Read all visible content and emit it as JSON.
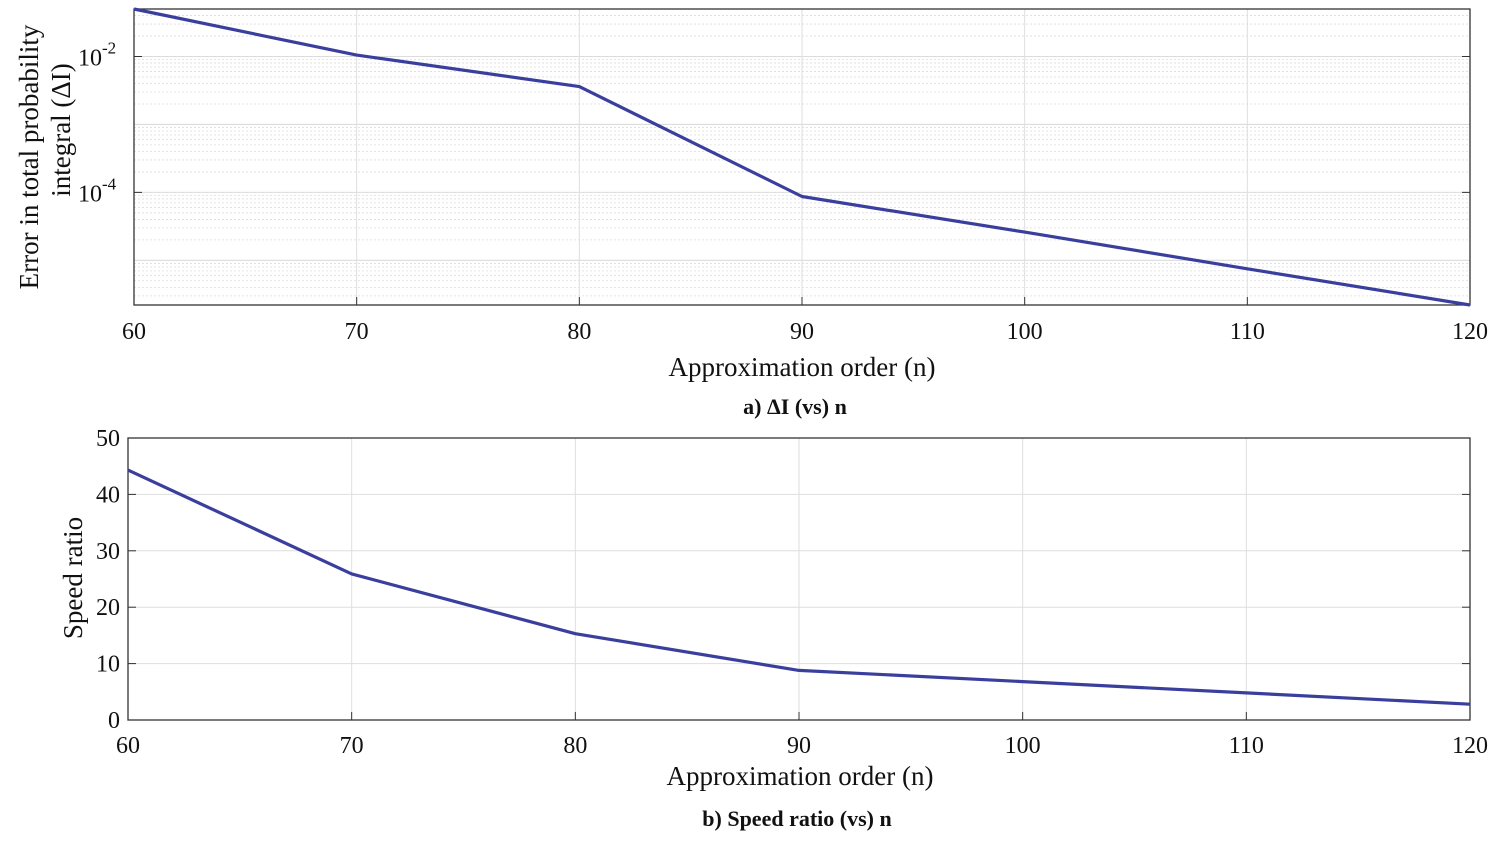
{
  "chart_data": [
    {
      "type": "line",
      "caption": "a) ΔI (vs) n",
      "xlabel": "Approximation order (n)",
      "ylabel_line1": "Error in total probability",
      "ylabel_line2": "integral (ΔI)",
      "xlim": [
        60,
        120
      ],
      "xticks": [
        60,
        70,
        80,
        90,
        100,
        110,
        120
      ],
      "ylim": [
        2.2e-06,
        0.05
      ],
      "yscale": "log",
      "yticks": [
        {
          "value": 0.01,
          "base": "10",
          "exp": "-2"
        },
        {
          "value": 0.0001,
          "base": "10",
          "exp": "-4"
        }
      ],
      "grid": true,
      "series": [
        {
          "x": [
            60,
            70,
            80,
            90,
            100,
            110,
            120
          ],
          "y": [
            0.05,
            0.0105,
            0.0036,
            8.7e-05,
            2.6e-05,
            7.5e-06,
            2.2e-06
          ]
        }
      ],
      "line_color": "#3a3f9e"
    },
    {
      "type": "line",
      "caption": "b) Speed ratio (vs) n",
      "xlabel": "Approximation order (n)",
      "ylabel": "Speed ratio",
      "xlim": [
        60,
        120
      ],
      "xticks": [
        60,
        70,
        80,
        90,
        100,
        110,
        120
      ],
      "ylim": [
        0,
        50
      ],
      "yticks": [
        0,
        10,
        20,
        30,
        40,
        50
      ],
      "grid": true,
      "series": [
        {
          "x": [
            60,
            70,
            80,
            90,
            100,
            110,
            120
          ],
          "y": [
            44.3,
            25.9,
            15.3,
            8.8,
            6.8,
            4.8,
            2.8
          ]
        }
      ],
      "line_color": "#3a3f9e"
    }
  ]
}
